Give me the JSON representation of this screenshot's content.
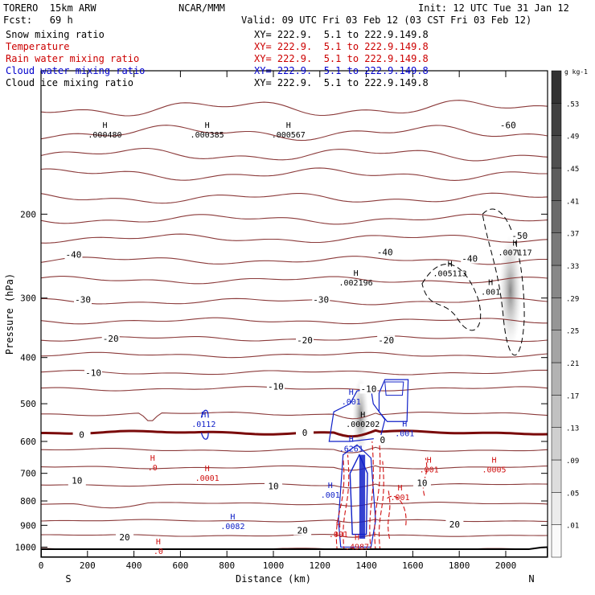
{
  "header": {
    "model": "TORERO  15km ARW",
    "center": "NCAR/MMM",
    "init": "Init: 12 UTC Tue 31 Jan 12",
    "fcst": "Fcst:   69 h",
    "valid": "Valid: 09 UTC Fri 03 Feb 12 (03 CST Fri 03 Feb 12)"
  },
  "fields": [
    {
      "name": "Snow mixing ratio",
      "xy": "XY= 222.9.  5.1 to 222.9.149.8",
      "color": "#000000"
    },
    {
      "name": "Temperature",
      "xy": "XY= 222.9.  5.1 to 222.9.149.8",
      "color": "#cc0000"
    },
    {
      "name": "Rain water mixing ratio",
      "xy": "XY= 222.9.  5.1 to 222.9.149.8",
      "color": "#cc0000"
    },
    {
      "name": "Cloud water mixing ratio",
      "xy": "XY= 222.9.  5.1 to 222.9.149.8",
      "color": "#0000cc"
    },
    {
      "name": "Cloud ice mixing ratio",
      "xy": "XY= 222.9.  5.1 to 222.9.149.8",
      "color": "#000000"
    }
  ],
  "chart_data": {
    "type": "contour",
    "xlabel": "Distance (km)",
    "ylabel": "Pressure (hPa)",
    "xlim": [
      0,
      2180
    ],
    "ylim": [
      100,
      1050
    ],
    "y_scale": "log",
    "xticks": [
      0,
      200,
      400,
      600,
      800,
      1000,
      1200,
      1400,
      1600,
      1800,
      2000
    ],
    "yticks": [
      200,
      300,
      400,
      500,
      600,
      700,
      800,
      900,
      1000
    ],
    "x_end_labels": {
      "left": "S",
      "right": "N"
    },
    "colorbar": {
      "unit": "g kg-1",
      "ticks": [
        ".01",
        ".05",
        ".09",
        ".13",
        ".17",
        ".21",
        ".25",
        ".29",
        ".33",
        ".37",
        ".41",
        ".45",
        ".49",
        ".53"
      ]
    },
    "temperature_labels": [
      {
        "text": "-60",
        "x": 2010,
        "p": 130
      },
      {
        "text": "-50",
        "x": 2060,
        "p": 222
      },
      {
        "text": "-40",
        "x": 140,
        "p": 243
      },
      {
        "text": "-40",
        "x": 1480,
        "p": 240
      },
      {
        "text": "-40",
        "x": 1845,
        "p": 248
      },
      {
        "text": "-30",
        "x": 180,
        "p": 302
      },
      {
        "text": "-30",
        "x": 1205,
        "p": 302
      },
      {
        "text": "-20",
        "x": 300,
        "p": 365
      },
      {
        "text": "-20",
        "x": 1135,
        "p": 368
      },
      {
        "text": "-20",
        "x": 1485,
        "p": 368
      },
      {
        "text": "-10",
        "x": 225,
        "p": 430
      },
      {
        "text": "-10",
        "x": 1010,
        "p": 460
      },
      {
        "text": "-10",
        "x": 1410,
        "p": 465
      },
      {
        "text": "0",
        "x": 175,
        "p": 580
      },
      {
        "text": "0",
        "x": 1135,
        "p": 575
      },
      {
        "text": "0",
        "x": 1470,
        "p": 595
      },
      {
        "text": "10",
        "x": 155,
        "p": 725
      },
      {
        "text": "10",
        "x": 1000,
        "p": 745
      },
      {
        "text": "10",
        "x": 1640,
        "p": 733
      },
      {
        "text": "20",
        "x": 360,
        "p": 952
      },
      {
        "text": "20",
        "x": 1125,
        "p": 922
      },
      {
        "text": "20",
        "x": 1780,
        "p": 895
      }
    ],
    "maxima": [
      {
        "field": "snow",
        "value": ".000480",
        "x": 275,
        "p": 137
      },
      {
        "field": "snow",
        "value": ".000385",
        "x": 715,
        "p": 137
      },
      {
        "field": "snow",
        "value": ".000567",
        "x": 1065,
        "p": 137
      },
      {
        "field": "snow",
        "value": ".002196",
        "x": 1355,
        "p": 280
      },
      {
        "field": "snow",
        "value": ".005113",
        "x": 1760,
        "p": 268
      },
      {
        "field": "snow",
        "value": ".007117",
        "x": 2040,
        "p": 242
      },
      {
        "field": "ice",
        "value": ".001",
        "x": 1935,
        "p": 293
      },
      {
        "field": "ice",
        "value": ".000202",
        "x": 1385,
        "p": 555
      },
      {
        "field": "cloud",
        "value": ".0112",
        "x": 700,
        "p": 555
      },
      {
        "field": "cloud",
        "value": ".001",
        "x": 1335,
        "p": 498
      },
      {
        "field": "cloud",
        "value": ".001",
        "x": 1565,
        "p": 580
      },
      {
        "field": "cloud",
        "value": ".6261",
        "x": 1335,
        "p": 625
      },
      {
        "field": "cloud",
        "value": ".001",
        "x": 1245,
        "p": 782
      },
      {
        "field": "cloud",
        "value": ".0082",
        "x": 825,
        "p": 910
      },
      {
        "field": "rain",
        "value": ".0",
        "x": 480,
        "p": 685
      },
      {
        "field": "rain",
        "value": ".0001",
        "x": 715,
        "p": 720
      },
      {
        "field": "rain",
        "value": ".001",
        "x": 1670,
        "p": 692
      },
      {
        "field": "rain",
        "value": ".0005",
        "x": 1950,
        "p": 692
      },
      {
        "field": "rain",
        "value": ".001",
        "x": 1545,
        "p": 790
      },
      {
        "field": "rain",
        "value": ".001",
        "x": 1280,
        "p": 945
      },
      {
        "field": "rain",
        "value": ".4987",
        "x": 1360,
        "p": 1005
      },
      {
        "field": "rain",
        "value": ".0",
        "x": 505,
        "p": 1025
      }
    ],
    "temperature_isotherm_pressures": [
      120,
      135,
      150,
      165,
      185,
      205,
      225,
      250,
      275,
      305,
      335,
      365,
      395,
      430,
      465,
      525,
      575,
      625,
      680,
      740,
      810,
      880,
      945,
      1010
    ],
    "terrain_surface_p": 1010
  }
}
